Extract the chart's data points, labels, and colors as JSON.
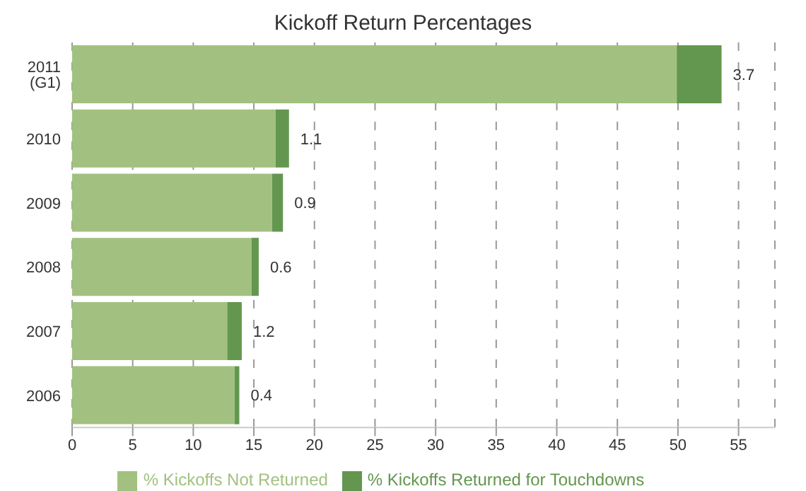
{
  "chart_data": {
    "type": "bar",
    "orientation": "horizontal",
    "stacked": true,
    "title": "Kickoff Return Percentages",
    "categories": [
      "2011 (G1)",
      "2010",
      "2009",
      "2008",
      "2007",
      "2006"
    ],
    "series": [
      {
        "name": "% Kickoffs Not Returned",
        "color": "#a2c180",
        "values": [
          49.9,
          16.8,
          16.5,
          14.8,
          12.8,
          13.4
        ]
      },
      {
        "name": "% Kickoffs Returned for Touchdowns",
        "color": "#63974f",
        "values": [
          3.7,
          1.1,
          0.9,
          0.6,
          1.2,
          0.4
        ],
        "data_labels": true
      }
    ],
    "xlim": [
      0,
      58
    ],
    "xticks": [
      0,
      5,
      10,
      15,
      20,
      25,
      30,
      35,
      40,
      45,
      50,
      55
    ],
    "grid": "x",
    "legend": "bottom"
  }
}
